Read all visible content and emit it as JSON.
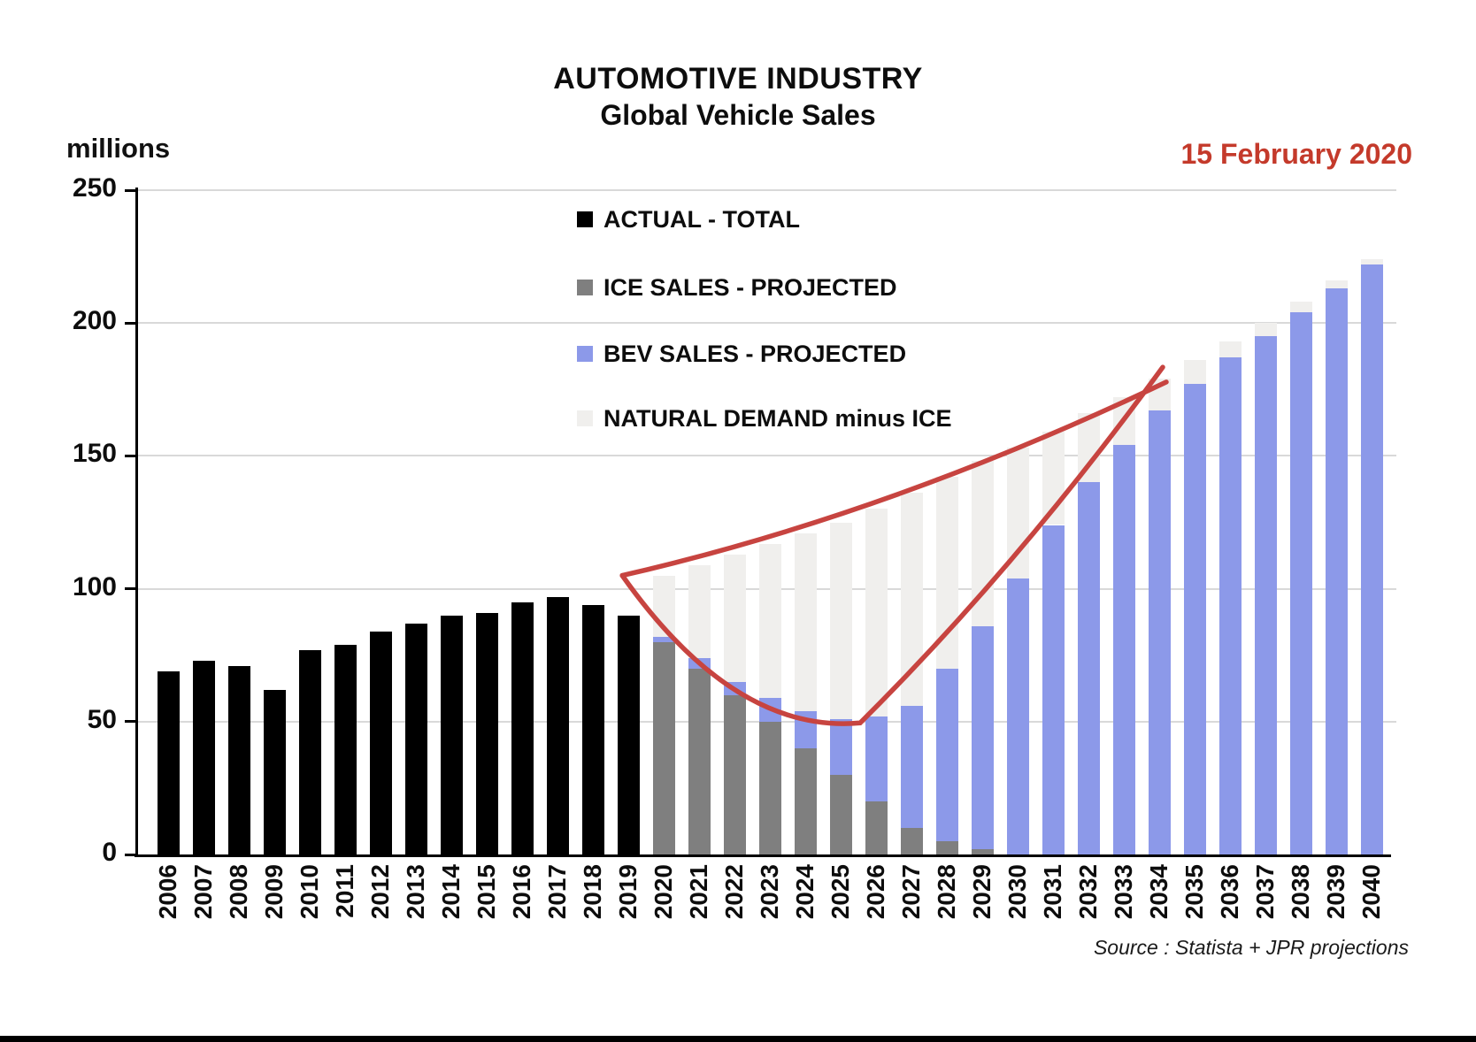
{
  "header": {
    "title_line1": "AUTOMOTIVE INDUSTRY",
    "title_line2": "Global Vehicle Sales",
    "date_label": "15 February 2020",
    "date_color": "#c43a2b",
    "units_label": "millions",
    "source_label": "Source : Statista + JPR projections"
  },
  "legend": [
    {
      "name": "actual-total",
      "label": "ACTUAL - TOTAL",
      "color": "#000000"
    },
    {
      "name": "ice-sales-projected",
      "label": "ICE SALES - PROJECTED",
      "color": "#7f7f7f"
    },
    {
      "name": "bev-sales-projected",
      "label": "BEV SALES - PROJECTED",
      "color": "#8c99e9"
    },
    {
      "name": "natural-demand-minus-ice",
      "label": "NATURAL DEMAND minus ICE",
      "color": "#f0efed"
    }
  ],
  "chart_data": {
    "type": "bar",
    "stacked": true,
    "title": "AUTOMOTIVE INDUSTRY — Global Vehicle Sales",
    "ylabel": "millions",
    "ylim": [
      0,
      250
    ],
    "yticks": [
      0,
      50,
      100,
      150,
      200,
      250
    ],
    "grid": true,
    "legend_position": "upper-center-inside",
    "categories": [
      "2006",
      "2007",
      "2008",
      "2009",
      "2010",
      "2011",
      "2012",
      "2013",
      "2014",
      "2015",
      "2016",
      "2017",
      "2018",
      "2019",
      "2020",
      "2021",
      "2022",
      "2023",
      "2024",
      "2025",
      "2026",
      "2027",
      "2028",
      "2029",
      "2030",
      "2031",
      "2032",
      "2033",
      "2034",
      "2035",
      "2036",
      "2037",
      "2038",
      "2039",
      "2040"
    ],
    "series": [
      {
        "name": "ACTUAL - TOTAL",
        "color": "#000000",
        "values": [
          69,
          73,
          71,
          62,
          77,
          79,
          84,
          87,
          90,
          91,
          95,
          97,
          94,
          90,
          null,
          null,
          null,
          null,
          null,
          null,
          null,
          null,
          null,
          null,
          null,
          null,
          null,
          null,
          null,
          null,
          null,
          null,
          null,
          null,
          null
        ]
      },
      {
        "name": "ICE SALES - PROJECTED",
        "color": "#7f7f7f",
        "values": [
          null,
          null,
          null,
          null,
          null,
          null,
          null,
          null,
          null,
          null,
          null,
          null,
          null,
          null,
          80,
          70,
          60,
          50,
          40,
          30,
          20,
          10,
          5,
          2,
          0,
          0,
          0,
          0,
          0,
          0,
          0,
          0,
          0,
          0,
          0
        ]
      },
      {
        "name": "BEV SALES - PROJECTED",
        "color": "#8c99e9",
        "values": [
          null,
          null,
          null,
          null,
          null,
          null,
          null,
          null,
          null,
          null,
          null,
          null,
          null,
          null,
          2,
          4,
          5,
          9,
          14,
          21,
          32,
          46,
          65,
          84,
          104,
          124,
          140,
          154,
          167,
          177,
          187,
          195,
          204,
          213,
          222
        ]
      },
      {
        "name": "NATURAL DEMAND minus ICE (top of pale bar)",
        "color": "#f0efed",
        "demand_top_values": [
          null,
          null,
          null,
          null,
          null,
          null,
          null,
          null,
          null,
          null,
          null,
          null,
          null,
          null,
          105,
          109,
          113,
          117,
          121,
          125,
          130,
          136,
          142,
          148,
          153,
          159,
          166,
          172,
          179,
          186,
          193,
          200,
          208,
          216,
          224
        ]
      }
    ],
    "annotation": {
      "description": "red scissors / swoosh outline from 2019 demand level, closing to a point at 2034",
      "color": "#c74440",
      "stroke_width": 5.5,
      "start": {
        "year": 2018.83,
        "value": 105
      },
      "upper_control": {
        "year": 2026.35,
        "value": 128
      },
      "upper_end": {
        "year": 2034.2,
        "value": 177.8
      },
      "lower_control1": {
        "year": 2022.0,
        "value": 45.3
      },
      "valley": {
        "year": 2025.55,
        "value": 49.5
      },
      "lower_control2": {
        "year": 2030.0,
        "value": 108.5
      },
      "lower_end": {
        "year": 2034.1,
        "value": 183.4
      }
    }
  }
}
